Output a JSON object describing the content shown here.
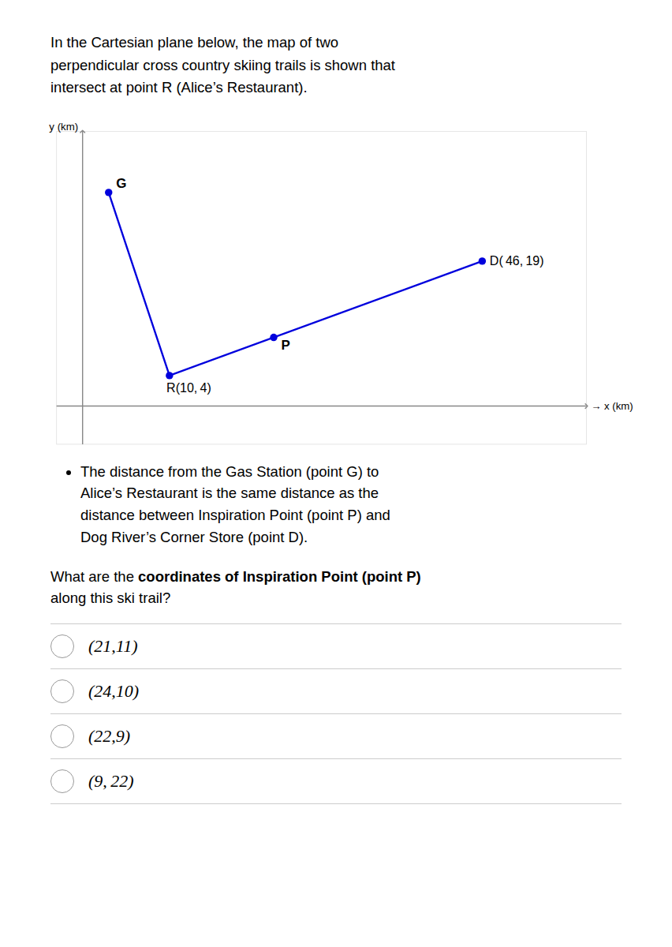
{
  "chart_data": {
    "type": "line",
    "subtitle": [
      "In the Cartesian plane below, the map of two",
      "perpendicular cross country skiing trails is shown that",
      "intersect at point R (Alice’s Restaurant)."
    ],
    "xlabel": "→ x (km)",
    "ylabel": "y (km)",
    "xlim": [
      -3,
      58
    ],
    "ylim": [
      -5,
      36
    ],
    "tick_labels": false,
    "grid": false,
    "series": [
      {
        "type": "line",
        "color": "#0000DD",
        "x": [
          3,
          10,
          46
        ],
        "values": [
          28,
          4,
          19
        ]
      },
      {
        "type": "scatter",
        "color": "#0000DD",
        "marker": "circle",
        "x": [
          3,
          10,
          46,
          22
        ],
        "values": [
          28,
          4,
          19,
          9
        ],
        "labels": [
          "G",
          "R(10, 4)",
          "D( 46, 19)",
          "P"
        ]
      }
    ],
    "annotations": {
      "bullet": [
        "The distance from the Gas Station (point G) to",
        "Alice’s Restaurant is the same distance as the",
        "distance between Inspiration Point (point P) and",
        "Dog River’s Corner Store (point D)."
      ],
      "question": [
        "What are the ",
        "coordinates of Inspiration Point (point P)",
        "along this ski trail?"
      ],
      "choices": [
        "(21,11)",
        "(24,10)",
        "(22,9)",
        "(9, 22)"
      ]
    }
  }
}
